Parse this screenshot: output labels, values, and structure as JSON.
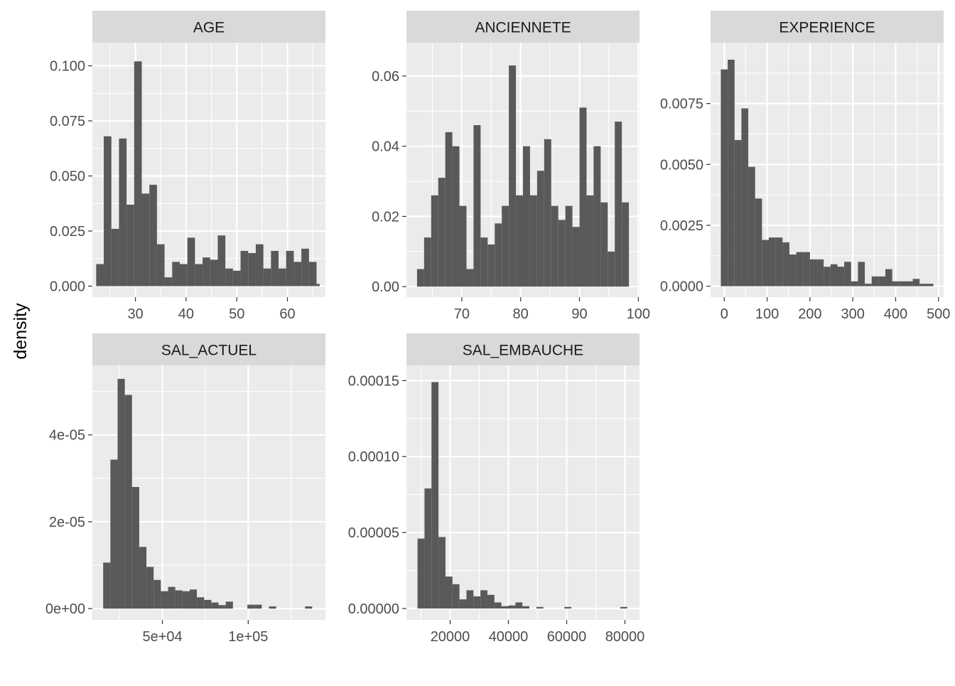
{
  "chart_data": [
    {
      "type": "bar",
      "panel": "AGE",
      "bin_width": 1.5,
      "x": [
        23.0,
        24.5,
        26.0,
        27.5,
        29.0,
        30.5,
        32.0,
        33.5,
        35.0,
        36.5,
        38.0,
        39.5,
        41.0,
        42.5,
        44.0,
        45.5,
        47.0,
        48.5,
        50.0,
        51.5,
        53.0,
        54.5,
        56.0,
        57.5,
        59.0,
        60.5,
        62.0,
        63.5,
        65.0
      ],
      "values": [
        0.01,
        0.068,
        0.026,
        0.067,
        0.037,
        0.102,
        0.042,
        0.046,
        0.019,
        0.004,
        0.011,
        0.01,
        0.022,
        0.01,
        0.013,
        0.012,
        0.023,
        0.008,
        0.007,
        0.016,
        0.015,
        0.019,
        0.008,
        0.016,
        0.008,
        0.016,
        0.011,
        0.017,
        0.011
      ],
      "tail": [
        66.0,
        0.001
      ],
      "xlim": [
        21.5,
        67.5
      ],
      "ylim": [
        -0.005,
        0.1105
      ],
      "xticks": [
        30,
        40,
        50,
        60
      ],
      "xtick_labels": [
        "30",
        "40",
        "50",
        "60"
      ],
      "yticks": [
        0,
        0.025,
        0.05,
        0.075,
        0.1
      ],
      "ytick_labels": [
        "0.000",
        "0.025",
        "0.050",
        "0.075",
        "0.100"
      ]
    },
    {
      "type": "bar",
      "panel": "ANCIENNETE",
      "bin_width": 1.2,
      "x": [
        63.0,
        64.2,
        65.4,
        66.6,
        67.8,
        69.0,
        70.2,
        71.4,
        72.6,
        73.8,
        75.0,
        76.2,
        77.4,
        78.6,
        79.8,
        81.0,
        82.2,
        83.4,
        84.6,
        85.8,
        87.0,
        88.2,
        89.4,
        90.6,
        91.8,
        93.0,
        94.2,
        95.4,
        96.6,
        97.8
      ],
      "values": [
        0.005,
        0.014,
        0.026,
        0.031,
        0.044,
        0.04,
        0.023,
        0.005,
        0.046,
        0.014,
        0.012,
        0.018,
        0.023,
        0.063,
        0.026,
        0.04,
        0.026,
        0.033,
        0.042,
        0.023,
        0.019,
        0.023,
        0.017,
        0.051,
        0.026,
        0.04,
        0.024,
        0.01,
        0.047,
        0.024
      ],
      "xlim": [
        60.6,
        100.2
      ],
      "ylim": [
        -0.003,
        0.0695
      ],
      "xticks": [
        70,
        80,
        90,
        100
      ],
      "xtick_labels": [
        "70",
        "80",
        "90",
        "100"
      ],
      "yticks": [
        0,
        0.02,
        0.04,
        0.06
      ],
      "ytick_labels": [
        "0.00",
        "0.02",
        "0.04",
        "0.06"
      ]
    },
    {
      "type": "bar",
      "panel": "EXPERIENCE",
      "bin_width": 16,
      "x": [
        0,
        16,
        32,
        48,
        64,
        80,
        96,
        112,
        128,
        144,
        160,
        176,
        192,
        208,
        224,
        240,
        256,
        272,
        288,
        304,
        320,
        336,
        352,
        368,
        384,
        400,
        416,
        432,
        448,
        464,
        480
      ],
      "values": [
        0.0089,
        0.0093,
        0.006,
        0.0073,
        0.0049,
        0.0036,
        0.0019,
        0.002,
        0.002,
        0.0018,
        0.0013,
        0.0014,
        0.0014,
        0.0011,
        0.0011,
        0.0008,
        0.0009,
        0.0008,
        0.001,
        0.0002,
        0.001,
        0.0001,
        0.0004,
        0.0004,
        0.0007,
        0.0002,
        0.0002,
        0.0002,
        0.0003,
        0.0001,
        0.0001
      ],
      "xlim": [
        -32,
        512
      ],
      "ylim": [
        -0.00045,
        0.01
      ],
      "xticks": [
        0,
        100,
        200,
        300,
        400,
        500
      ],
      "xtick_labels": [
        "0",
        "100",
        "200",
        "300",
        "400",
        "500"
      ],
      "yticks": [
        0,
        0.0025,
        0.005,
        0.0075
      ],
      "ytick_labels": [
        "0.0000",
        "0.0025",
        "0.0050",
        "0.0075"
      ]
    },
    {
      "type": "bar",
      "panel": "SAL_ACTUEL",
      "bin_width": 4200,
      "x": [
        17600,
        21800,
        26000,
        30200,
        34400,
        38600,
        42800,
        47000,
        51200,
        55400,
        59600,
        63800,
        68000,
        72200,
        76400,
        80600,
        84800,
        89000,
        93200,
        97400,
        101600,
        105800,
        110000,
        114200,
        118400,
        122600,
        126800,
        131000,
        135200
      ],
      "values": [
        1.06e-05,
        3.43e-05,
        5.29e-05,
        4.92e-05,
        2.8e-05,
        1.42e-05,
        9.6e-06,
        6.6e-06,
        4e-06,
        5e-06,
        4.2e-06,
        4e-06,
        4.4e-06,
        2.6e-06,
        2e-06,
        1.4e-06,
        8e-07,
        1.6e-06,
        0,
        0,
        9e-07,
        9e-07,
        0,
        5e-07,
        0,
        0,
        0,
        0,
        5e-07
      ],
      "xlim": [
        9200,
        145000
      ],
      "ylim": [
        -2.6e-06,
        5.6e-05
      ],
      "xticks": [
        50000,
        100000
      ],
      "xtick_labels": [
        "5e+04",
        "1e+05"
      ],
      "yticks": [
        0,
        2e-05,
        4e-05
      ],
      "ytick_labels": [
        "0e+00",
        "2e-05",
        "4e-05"
      ]
    },
    {
      "type": "bar",
      "panel": "SAL_EMBAUCHE",
      "bin_width": 2400,
      "x": [
        10000,
        12400,
        14800,
        17200,
        19600,
        22000,
        24400,
        26800,
        29200,
        31600,
        34000,
        36400,
        38800,
        41200,
        43600,
        46000,
        48400,
        50800,
        53200,
        55600,
        58000,
        60400,
        62800,
        65200,
        67600,
        70000,
        72400,
        74800,
        77200,
        79600
      ],
      "values": [
        4.6e-05,
        7.9e-05,
        0.000149,
        4.7e-05,
        2.1e-05,
        1.6e-05,
        6e-06,
        1.2e-05,
        8e-06,
        1.2e-05,
        9e-06,
        4e-06,
        1.5e-06,
        2e-06,
        4e-06,
        1.5e-06,
        0,
        1e-06,
        0,
        0,
        0,
        1e-06,
        0,
        0,
        0,
        0,
        0,
        0,
        0,
        1e-06
      ],
      "xlim": [
        5000,
        85000
      ],
      "ylim": [
        -7.5e-06,
        0.00016
      ],
      "xticks": [
        20000,
        40000,
        60000,
        80000
      ],
      "xtick_labels": [
        "20000",
        "40000",
        "60000",
        "80000"
      ],
      "yticks": [
        0,
        5e-05,
        0.0001,
        0.00015
      ],
      "ytick_labels": [
        "0.00000",
        "0.00005",
        "0.00010",
        "0.00015"
      ]
    }
  ],
  "ylabel": "density",
  "colors": {
    "panel_bg": "#ebebeb",
    "strip_bg": "#d9d9d9",
    "grid": "#ffffff",
    "bar": "#595959",
    "tick": "#333333",
    "tick_label": "#4d4d4d",
    "strip_text": "#1a1a1a"
  }
}
